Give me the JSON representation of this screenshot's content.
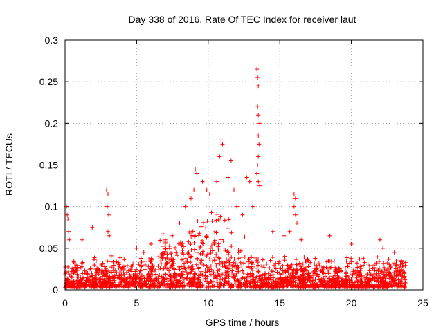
{
  "chart_data": {
    "type": "scatter",
    "title": "Day 338 of 2016, Rate Of TEC Index for receiver laut",
    "xlabel": "GPS time / hours",
    "ylabel": "ROTI / TECUs",
    "xlim": [
      0,
      25
    ],
    "ylim": [
      0,
      0.3
    ],
    "xticks": [
      "0",
      "5",
      "10",
      "15",
      "20",
      "25"
    ],
    "yticks": [
      "0",
      "0.05",
      "0.1",
      "0.15",
      "0.2",
      "0.25",
      "0.3"
    ],
    "grid": true,
    "series": [
      {
        "color": "#ff0000",
        "marker": "plus",
        "points": [
          [
            0.1,
            0.1
          ],
          [
            0.15,
            0.09
          ],
          [
            0.2,
            0.085
          ],
          [
            0.25,
            0.07
          ],
          [
            0.3,
            0.06
          ],
          [
            1.2,
            0.06
          ],
          [
            1.9,
            0.075
          ],
          [
            2.9,
            0.12
          ],
          [
            3.0,
            0.115
          ],
          [
            2.95,
            0.1
          ],
          [
            3.05,
            0.09
          ],
          [
            3.0,
            0.07
          ],
          [
            3.1,
            0.065
          ],
          [
            5.0,
            0.05
          ],
          [
            5.5,
            0.045
          ],
          [
            6.0,
            0.055
          ],
          [
            7.0,
            0.06
          ],
          [
            7.5,
            0.065
          ],
          [
            8.0,
            0.08
          ],
          [
            8.4,
            0.1
          ],
          [
            8.8,
            0.11
          ],
          [
            9.0,
            0.12
          ],
          [
            9.1,
            0.145
          ],
          [
            9.2,
            0.14
          ],
          [
            9.6,
            0.13
          ],
          [
            9.9,
            0.12
          ],
          [
            10.1,
            0.115
          ],
          [
            10.6,
            0.13
          ],
          [
            10.8,
            0.16
          ],
          [
            10.9,
            0.18
          ],
          [
            11.0,
            0.175
          ],
          [
            11.1,
            0.15
          ],
          [
            11.4,
            0.135
          ],
          [
            11.6,
            0.155
          ],
          [
            11.8,
            0.12
          ],
          [
            12.0,
            0.1
          ],
          [
            12.4,
            0.09
          ],
          [
            12.7,
            0.135
          ],
          [
            12.9,
            0.13
          ],
          [
            13.1,
            0.1
          ],
          [
            13.4,
            0.265
          ],
          [
            13.45,
            0.255
          ],
          [
            13.5,
            0.245
          ],
          [
            13.45,
            0.22
          ],
          [
            13.5,
            0.21
          ],
          [
            13.6,
            0.2
          ],
          [
            13.5,
            0.185
          ],
          [
            13.55,
            0.175
          ],
          [
            13.5,
            0.16
          ],
          [
            13.45,
            0.15
          ],
          [
            13.4,
            0.14
          ],
          [
            13.5,
            0.13
          ],
          [
            13.6,
            0.125
          ],
          [
            14.5,
            0.07
          ],
          [
            15.3,
            0.065
          ],
          [
            15.7,
            0.07
          ],
          [
            16.0,
            0.115
          ],
          [
            16.1,
            0.11
          ],
          [
            16.0,
            0.1
          ],
          [
            16.1,
            0.09
          ],
          [
            16.2,
            0.08
          ],
          [
            16.5,
            0.06
          ],
          [
            18.5,
            0.065
          ],
          [
            20.0,
            0.055
          ],
          [
            22.0,
            0.06
          ],
          [
            22.2,
            0.05
          ],
          [
            23.0,
            0.045
          ],
          [
            23.5,
            0.035
          ]
        ]
      }
    ]
  }
}
